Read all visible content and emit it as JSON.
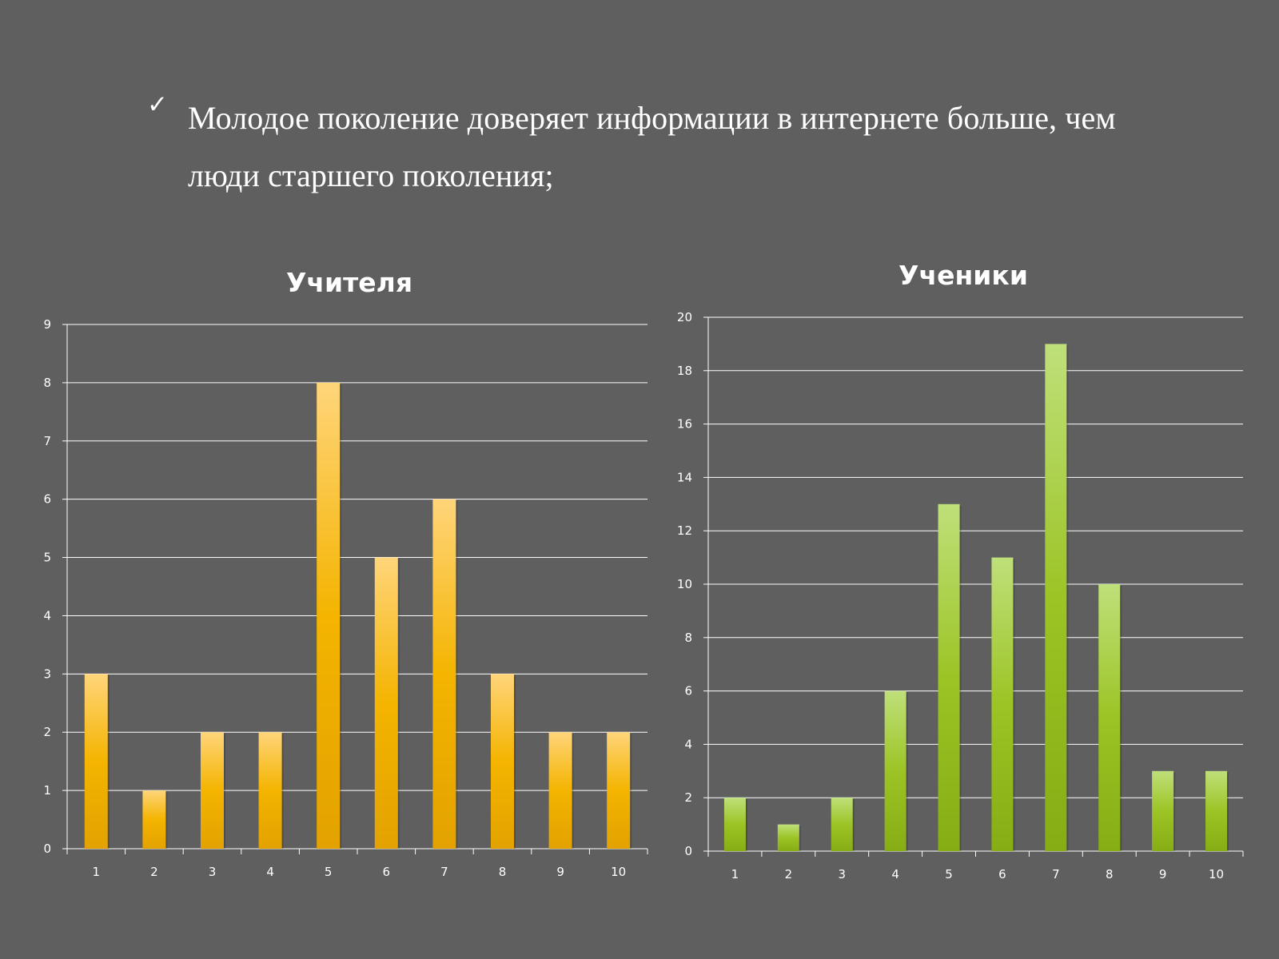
{
  "slide": {
    "checkmark_icon": "checkmark-icon",
    "bullet_text": "Молодое поколение доверяет информации в интернете больше, чем люди старшего поколения;"
  },
  "colors": {
    "background": "#5f5f5f",
    "teachers_bar_top": "#ffd57a",
    "teachers_bar_bottom": "#e3a200",
    "students_bar_top": "#bfe07a",
    "students_bar_bottom": "#86ad14"
  },
  "chart_data": [
    {
      "type": "bar",
      "title": "Учителя",
      "categories": [
        "1",
        "2",
        "3",
        "4",
        "5",
        "6",
        "7",
        "8",
        "9",
        "10"
      ],
      "values": [
        3,
        1,
        2,
        2,
        8,
        5,
        6,
        3,
        2,
        2
      ],
      "xlabel": "",
      "ylabel": "",
      "ylim": [
        0,
        9
      ],
      "yticks": [
        0,
        1,
        2,
        3,
        4,
        5,
        6,
        7,
        8,
        9
      ],
      "grid": true,
      "legend": "none"
    },
    {
      "type": "bar",
      "title": "Ученики",
      "categories": [
        "1",
        "2",
        "3",
        "4",
        "5",
        "6",
        "7",
        "8",
        "9",
        "10"
      ],
      "values": [
        2,
        1,
        2,
        6,
        13,
        11,
        19,
        10,
        3,
        3
      ],
      "xlabel": "",
      "ylabel": "",
      "ylim": [
        0,
        20
      ],
      "yticks": [
        0,
        2,
        4,
        6,
        8,
        10,
        12,
        14,
        16,
        18,
        20
      ],
      "grid": true,
      "legend": "none"
    }
  ]
}
